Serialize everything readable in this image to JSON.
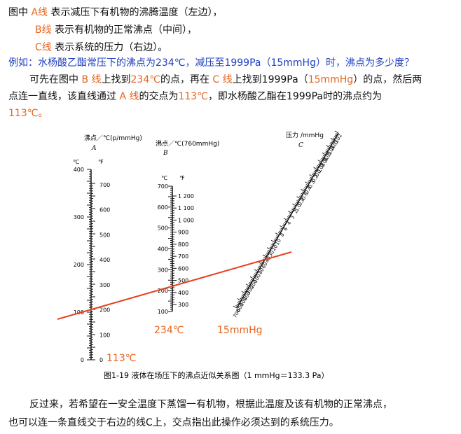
{
  "intro": {
    "line1_pre": "图中 ",
    "line1_hl": "A线",
    "line1_post": " 表示减压下有机物的沸腾温度（左边），",
    "line2_hl": "B线",
    "line2_post": " 表示有机物的正常沸点（中间），",
    "line3_hl": "C线",
    "line3_post": " 表示系统的压力（右边）。"
  },
  "example": {
    "question": "例如：水杨酸乙酯常压下的沸点为234℃，减压至1999Pa（15mmHg）时，沸点为多少度？",
    "answer_1a": "可先在图中 ",
    "answer_1b": "B 线",
    "answer_1c": "上找到",
    "answer_1d": "234℃",
    "answer_1e": "的点，再在 ",
    "answer_1f": "C 线",
    "answer_1g": "上找到1999Pa（",
    "answer_1h": "15mmHg",
    "answer_1i": "）的点，然后两",
    "answer_2a": "点连一直线，该直线通过 ",
    "answer_2b": "A 线",
    "answer_2c": "的交点为",
    "answer_2d": "113℃",
    "answer_2e": "，即水杨酸乙酯在1999Pa时的沸点约为",
    "answer_3": "113℃。"
  },
  "nomogram": {
    "scale_a": {
      "title": "沸点／℃(p/mmHg)",
      "letter": "A",
      "unit_c": "℃",
      "unit_f": "℉",
      "c_ticks": [
        "400",
        "300",
        "200",
        "100",
        "0"
      ],
      "f_ticks": [
        "700",
        "600",
        "500",
        "400",
        "300",
        "200",
        "100",
        "0"
      ]
    },
    "scale_b": {
      "title": "沸点／℃(760mmHg)",
      "letter": "B",
      "unit_c": "℃",
      "unit_f": "℉",
      "c_ticks": [
        "700",
        "600",
        "500",
        "400",
        "300",
        "200",
        "100"
      ],
      "f_ticks": [
        "1 200",
        "1 100",
        "1 000",
        "900",
        "800",
        "700",
        "600",
        "500",
        "400",
        "300"
      ]
    },
    "scale_c": {
      "title": "压力 /mmHg",
      "letter": "C",
      "ticks": [
        "0.02",
        "0.03",
        "0.04",
        "0.05",
        "0.06",
        "0.08",
        "0.1",
        "0.2",
        "0.3",
        "0.4",
        "0.6",
        "0.8",
        "1.0",
        "2",
        "3",
        "4",
        "6",
        "8",
        "10",
        "20",
        "30",
        "40",
        "60",
        "80",
        "100",
        "200",
        "300",
        "400",
        "500",
        "600",
        "700"
      ]
    },
    "labels": {
      "a_value": "113℃",
      "b_value": "234℃",
      "c_value": "15mmHg"
    },
    "figure_caption": "图1-19  液体在场压下的沸点近似关系图（1 mmHg＝133.3 Pa）",
    "line_color": "#e8401c",
    "accent_color": "#e8641e"
  },
  "conclusion": {
    "line1": "反过来，若希望在一安全温度下蒸馏一有机物，根据此温度及该有机物的正常沸点，",
    "line2": "也可以连一条直线交于右边的线C上，交点指出此操作必须达到的系统压力。"
  }
}
